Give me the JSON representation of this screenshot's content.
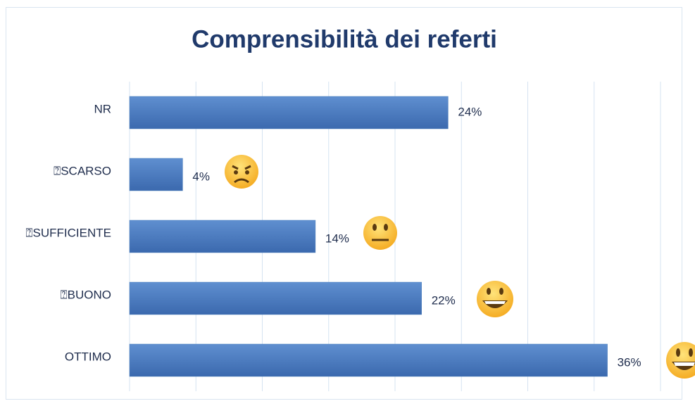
{
  "chart_data": {
    "type": "hbar",
    "title": "Comprensibilità dei referti",
    "categories": [
      "NR",
      "⍰SCARSO",
      "⍰SUFFICIENTE",
      "⍰BUONO",
      "OTTIMO"
    ],
    "values": [
      24,
      4,
      14,
      22,
      36
    ],
    "value_labels": [
      "24%",
      "4%",
      "14%",
      "22%",
      "36%"
    ],
    "color": "#4f81bd",
    "xlim": [
      0,
      40
    ],
    "xticks": [
      0,
      5,
      10,
      15,
      20,
      25,
      30,
      35,
      40
    ],
    "grid": true
  }
}
